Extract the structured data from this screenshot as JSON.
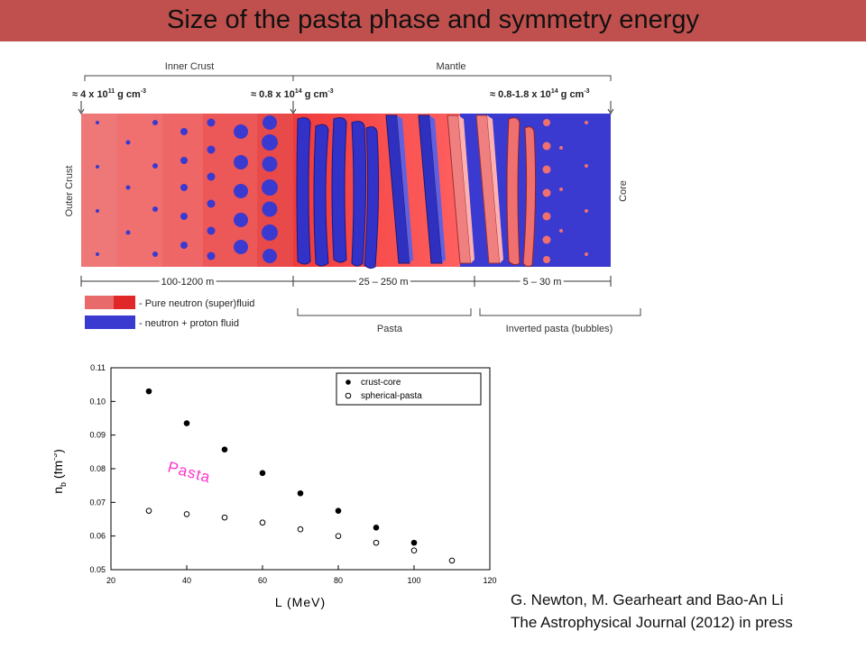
{
  "title": "Size of the pasta phase and symmetry energy",
  "colors": {
    "title_bar": "#c0504d",
    "pure_neutron_light": "#e86a6a",
    "pure_neutron_dark": "#e02828",
    "neutron_proton": "#3a3ad0",
    "pasta_label": "#ff33cc"
  },
  "diagram": {
    "inner_crust_label": "Inner Crust",
    "mantle_label": "Mantle",
    "density_left": "≈ 4 x 10",
    "density_left_exp": "11",
    "density_left_unit": " g cm",
    "density_left_unit_exp": "-3",
    "density_mid": "≈ 0.8 x 10",
    "density_mid_exp": "14",
    "density_mid_unit": " g cm",
    "density_mid_unit_exp": "-3",
    "density_right": "≈ 0.8-1.8 x 10",
    "density_right_exp": "14",
    "density_right_unit": " g cm",
    "density_right_unit_exp": "-3",
    "outer_crust_label": "Outer Crust",
    "core_label": "Core",
    "size_crust": "100-1200 m",
    "size_pasta": "25 – 250 m",
    "size_inverted": "5 – 30 m",
    "legend_pure": "- Pure neutron (super)fluid",
    "legend_np": "- neutron + proton fluid",
    "pasta_label": "Pasta",
    "inverted_pasta_label": "Inverted pasta (bubbles)"
  },
  "chart_data": {
    "type": "scatter",
    "xlabel": "L (MeV)",
    "ylabel_main": "n",
    "ylabel_sub": "b",
    "ylabel_rest": " (fm",
    "ylabel_exp": "-3",
    "ylabel_close": ")",
    "xlim": [
      20,
      120
    ],
    "ylim": [
      0.05,
      0.11
    ],
    "x_ticks": [
      "20",
      "40",
      "60",
      "80",
      "100",
      "120"
    ],
    "y_ticks": [
      "0.05",
      "0.06",
      "0.07",
      "0.08",
      "0.09",
      "0.10",
      "0.11"
    ],
    "annotation": "Pasta",
    "legend_position": "top-right",
    "series": [
      {
        "name": "crust-core",
        "marker": "filled-circle",
        "x": [
          30,
          40,
          50,
          60,
          70,
          80,
          90,
          100
        ],
        "y": [
          0.103,
          0.0935,
          0.0857,
          0.0787,
          0.0727,
          0.0675,
          0.0625,
          0.058
        ]
      },
      {
        "name": "spherical-pasta",
        "marker": "open-circle",
        "x": [
          30,
          40,
          50,
          60,
          70,
          80,
          90,
          100,
          110
        ],
        "y": [
          0.0675,
          0.0665,
          0.0655,
          0.064,
          0.062,
          0.06,
          0.058,
          0.0557,
          0.0527
        ]
      }
    ]
  },
  "citation": {
    "line1": "G. Newton, M. Gearheart and Bao-An Li",
    "line2": "The Astrophysical Journal (2012) in press"
  }
}
